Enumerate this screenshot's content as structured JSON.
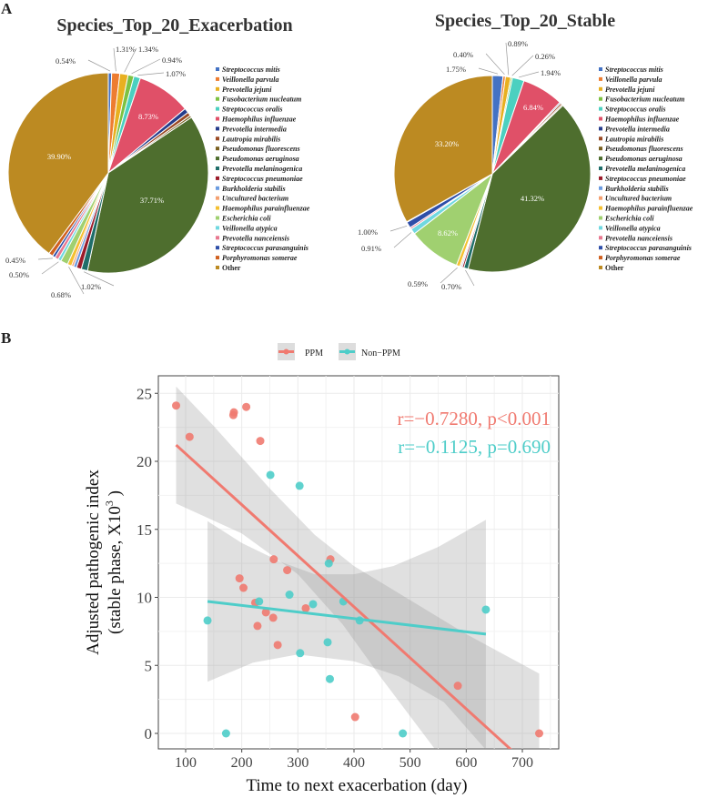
{
  "panels": {
    "a": "A",
    "b": "B"
  },
  "chart_data": [
    {
      "type": "pie",
      "title": "Species_Top_20_Exacerbation",
      "slices": [
        {
          "name": "Streptococcus mitis",
          "value": 0.54,
          "label": "0.54%",
          "color": "#4472C4"
        },
        {
          "name": "Veillonella parvula",
          "value": 1.31,
          "label": "1.31%",
          "color": "#ED7D31"
        },
        {
          "name": "Prevotella jejuni",
          "value": 1.34,
          "label": "1.34%",
          "color": "#E8B020"
        },
        {
          "name": "Fusobacterium nucleatum",
          "value": 0.94,
          "label": "0.94%",
          "color": "#7DC242"
        },
        {
          "name": "Streptococcus oralis",
          "value": 1.07,
          "label": "1.07%",
          "color": "#4BD0C0"
        },
        {
          "name": "Haemophilus influenzae",
          "value": 8.73,
          "label": "8.73%",
          "color": "#E05068"
        },
        {
          "name": "Prevotella intermedia",
          "value": 0.75,
          "label": null,
          "color": "#263C8C"
        },
        {
          "name": "Lautropia mirabilis",
          "value": 0.6,
          "label": null,
          "color": "#9B4A25"
        },
        {
          "name": "Pseudomonas fluorescens",
          "value": 0.35,
          "label": null,
          "color": "#7A6020"
        },
        {
          "name": "Pseudomonas aeruginosa",
          "value": 37.71,
          "label": "37.71%",
          "color": "#4E6E2E"
        },
        {
          "name": "Prevotella melaninogenica",
          "value": 1.02,
          "label": "1.02%",
          "color": "#1F6E6A"
        },
        {
          "name": "Streptococcus pneumoniae",
          "value": 0.8,
          "label": null,
          "color": "#9B1B2A"
        },
        {
          "name": "Burkholderia stabilis",
          "value": 0.5,
          "label": null,
          "color": "#6A9BE0"
        },
        {
          "name": "Uncultured bacterium",
          "value": 0.35,
          "label": null,
          "color": "#F4A070"
        },
        {
          "name": "Haemophilus parainfluenzae",
          "value": 0.68,
          "label": "0.68%",
          "color": "#F5C030"
        },
        {
          "name": "Escherichia coli",
          "value": 1.17,
          "label": "1.17%",
          "color": "#A0D070"
        },
        {
          "name": "Veillonella atypica",
          "value": 0.5,
          "label": "0.50%",
          "color": "#70D8E0"
        },
        {
          "name": "Prevotella nanceiensis",
          "value": 0.6,
          "label": null,
          "color": "#E87890"
        },
        {
          "name": "Streptococcus parasanguinis",
          "value": 0.45,
          "label": "0.45%",
          "color": "#2E4EA8"
        },
        {
          "name": "Porphyromonas somerae",
          "value": 0.69,
          "label": null,
          "color": "#D06020"
        },
        {
          "name": "Other",
          "value": 39.9,
          "label": "39.90%",
          "color": "#BC8A22"
        }
      ]
    },
    {
      "type": "pie",
      "title": "Species_Top_20_Stable",
      "slices": [
        {
          "name": "Streptococcus mitis",
          "value": 1.75,
          "label": "1.75%",
          "color": "#4472C4"
        },
        {
          "name": "Veillonella parvula",
          "value": 0.4,
          "label": "0.40%",
          "color": "#ED7D31"
        },
        {
          "name": "Prevotella jejuni",
          "value": 0.89,
          "label": "0.89%",
          "color": "#E8B020"
        },
        {
          "name": "Fusobacterium nucleatum",
          "value": 0.26,
          "label": "0.26%",
          "color": "#7DC242"
        },
        {
          "name": "Streptococcus oralis",
          "value": 1.94,
          "label": "1.94%",
          "color": "#4BD0C0"
        },
        {
          "name": "Haemophilus influenzae",
          "value": 6.84,
          "label": "6.84%",
          "color": "#E05068"
        },
        {
          "name": "Prevotella intermedia",
          "value": 0.2,
          "label": null,
          "color": "#263C8C"
        },
        {
          "name": "Lautropia mirabilis",
          "value": 0.3,
          "label": null,
          "color": "#9B4A25"
        },
        {
          "name": "Pseudomonas fluorescens",
          "value": 0.2,
          "label": null,
          "color": "#7A6020"
        },
        {
          "name": "Pseudomonas aeruginosa",
          "value": 41.32,
          "label": "41.32%",
          "color": "#4E6E2E"
        },
        {
          "name": "Prevotella melaninogenica",
          "value": 0.7,
          "label": "0.70%",
          "color": "#1F6E6A"
        },
        {
          "name": "Streptococcus pneumoniae",
          "value": 0.3,
          "label": null,
          "color": "#9B1B2A"
        },
        {
          "name": "Burkholderia stabilis",
          "value": 0.2,
          "label": null,
          "color": "#6A9BE0"
        },
        {
          "name": "Uncultured bacterium",
          "value": 0.2,
          "label": null,
          "color": "#F4A070"
        },
        {
          "name": "Haemophilus parainfluenzae",
          "value": 0.59,
          "label": "0.59%",
          "color": "#F5C030"
        },
        {
          "name": "Escherichia coli",
          "value": 8.62,
          "label": "8.62%",
          "color": "#A0D070"
        },
        {
          "name": "Veillonella atypica",
          "value": 0.91,
          "label": "0.91%",
          "color": "#70D8E0"
        },
        {
          "name": "Prevotella nanceiensis",
          "value": 0.3,
          "label": null,
          "color": "#E87890"
        },
        {
          "name": "Streptococcus parasanguinis",
          "value": 1.0,
          "label": "1.00%",
          "color": "#2E4EA8"
        },
        {
          "name": "Porphyromonas somerae",
          "value": 0.1,
          "label": null,
          "color": "#D06020"
        },
        {
          "name": "Other",
          "value": 33.2,
          "label": "33.20%",
          "color": "#BC8A22"
        }
      ]
    },
    {
      "type": "scatter",
      "xlabel": "Time to next exacerbation (day)",
      "ylabel": "Adjusted pathogenic index",
      "ylabel2": "(stable phase,    X10",
      "ylabel_sup": "3",
      "ylabel_end": " )",
      "xlim": [
        40,
        760
      ],
      "ylim": [
        -1.2,
        26.2
      ],
      "xticks": [
        100,
        200,
        300,
        400,
        500,
        600,
        700
      ],
      "yticks": [
        0,
        5,
        10,
        15,
        20,
        25
      ],
      "grid": true,
      "legend_position": "top",
      "series": [
        {
          "name": "PPM",
          "color": "#F07A70",
          "points": [
            [
              83,
              24.1
            ],
            [
              107,
              21.8
            ],
            [
              185,
              23.4
            ],
            [
              186,
              23.6
            ],
            [
              208,
              24
            ],
            [
              233,
              21.5
            ],
            [
              196,
              11.4
            ],
            [
              203,
              10.7
            ],
            [
              224,
              9.6
            ],
            [
              228,
              7.9
            ],
            [
              243,
              8.9
            ],
            [
              256,
              8.5
            ],
            [
              257,
              12.8
            ],
            [
              264,
              6.5
            ],
            [
              281,
              12
            ],
            [
              314,
              9.2
            ],
            [
              358,
              12.8
            ],
            [
              402,
              1.2
            ],
            [
              585,
              3.5
            ],
            [
              730,
              0
            ]
          ],
          "fit": [
            [
              83,
              21.2
            ],
            [
              680,
              -1.2
            ]
          ],
          "band_upper": [
            [
              83,
              25.5
            ],
            [
              150,
              22.6
            ],
            [
              250,
              18.0
            ],
            [
              330,
              14.6
            ],
            [
              400,
              12.3
            ],
            [
              500,
              9.8
            ],
            [
              600,
              7.3
            ],
            [
              730,
              4.4
            ]
          ],
          "band_lower": [
            [
              730,
              -1.2
            ],
            [
              545,
              -1.2
            ],
            [
              450,
              4.0
            ],
            [
              380,
              8.0
            ],
            [
              300,
              11.7
            ],
            [
              200,
              14.7
            ],
            [
              83,
              16.9
            ]
          ],
          "annotation": "r=−0.7280, p<0.001"
        },
        {
          "name": "Non−PPM",
          "color": "#4ECDC9",
          "points": [
            [
              139,
              8.3
            ],
            [
              172,
              0
            ],
            [
              231,
              9.7
            ],
            [
              251,
              19
            ],
            [
              285,
              10.2
            ],
            [
              303,
              18.2
            ],
            [
              304,
              5.9
            ],
            [
              327,
              9.5
            ],
            [
              353,
              6.7
            ],
            [
              355,
              12.5
            ],
            [
              357,
              4
            ],
            [
              381,
              9.7
            ],
            [
              410,
              8.3
            ],
            [
              487,
              0
            ],
            [
              635,
              9.1
            ]
          ],
          "fit": [
            [
              139,
              9.7
            ],
            [
              635,
              7.3
            ]
          ],
          "band_upper": [
            [
              139,
              15.6
            ],
            [
              200,
              14.0
            ],
            [
              270,
              12.6
            ],
            [
              330,
              11.7
            ],
            [
              400,
              11.7
            ],
            [
              470,
              12.3
            ],
            [
              550,
              13.7
            ],
            [
              635,
              15.7
            ]
          ],
          "band_lower": [
            [
              635,
              -1.2
            ],
            [
              560,
              2.3
            ],
            [
              480,
              4.2
            ],
            [
              400,
              5.3
            ],
            [
              300,
              5.8
            ],
            [
              220,
              5.2
            ],
            [
              139,
              3.8
            ]
          ],
          "annotation": "r=−0.1125, p=0.690"
        }
      ]
    }
  ]
}
